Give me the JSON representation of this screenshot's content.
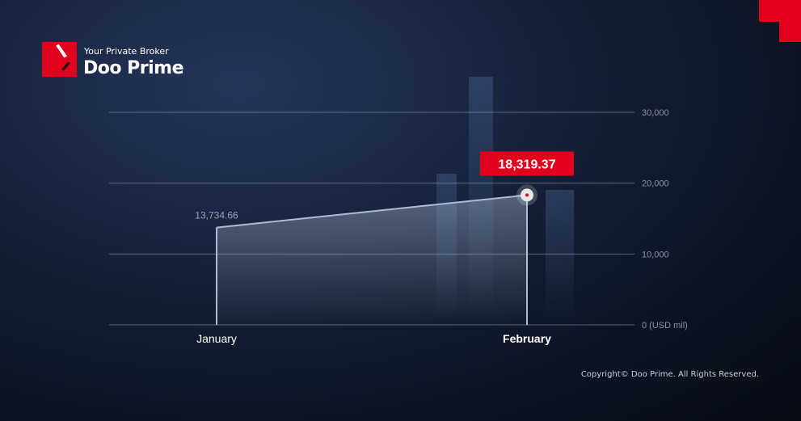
{
  "brand": {
    "tagline": "Your Private Broker",
    "name": "Doo Prime"
  },
  "colors": {
    "accent": "#e0001b",
    "grid": "#8e9aae",
    "area": "#9fb0c8"
  },
  "chart_data": {
    "type": "area",
    "categories": [
      "January",
      "February"
    ],
    "values": [
      13734.66,
      18319.37
    ],
    "data_labels": [
      "13,734.66",
      "18,319.37"
    ],
    "highlight_index": 1,
    "y_unit": "(USD mil)",
    "yticks": [
      0,
      10000,
      20000,
      30000
    ],
    "ytick_labels": [
      "0 (USD mil)",
      "10,000",
      "20,000",
      "30,000"
    ],
    "ylim": [
      0,
      30000
    ],
    "grid": true
  },
  "footer": {
    "copyright": "Copyright© Doo Prime. All Rights Reserved."
  }
}
